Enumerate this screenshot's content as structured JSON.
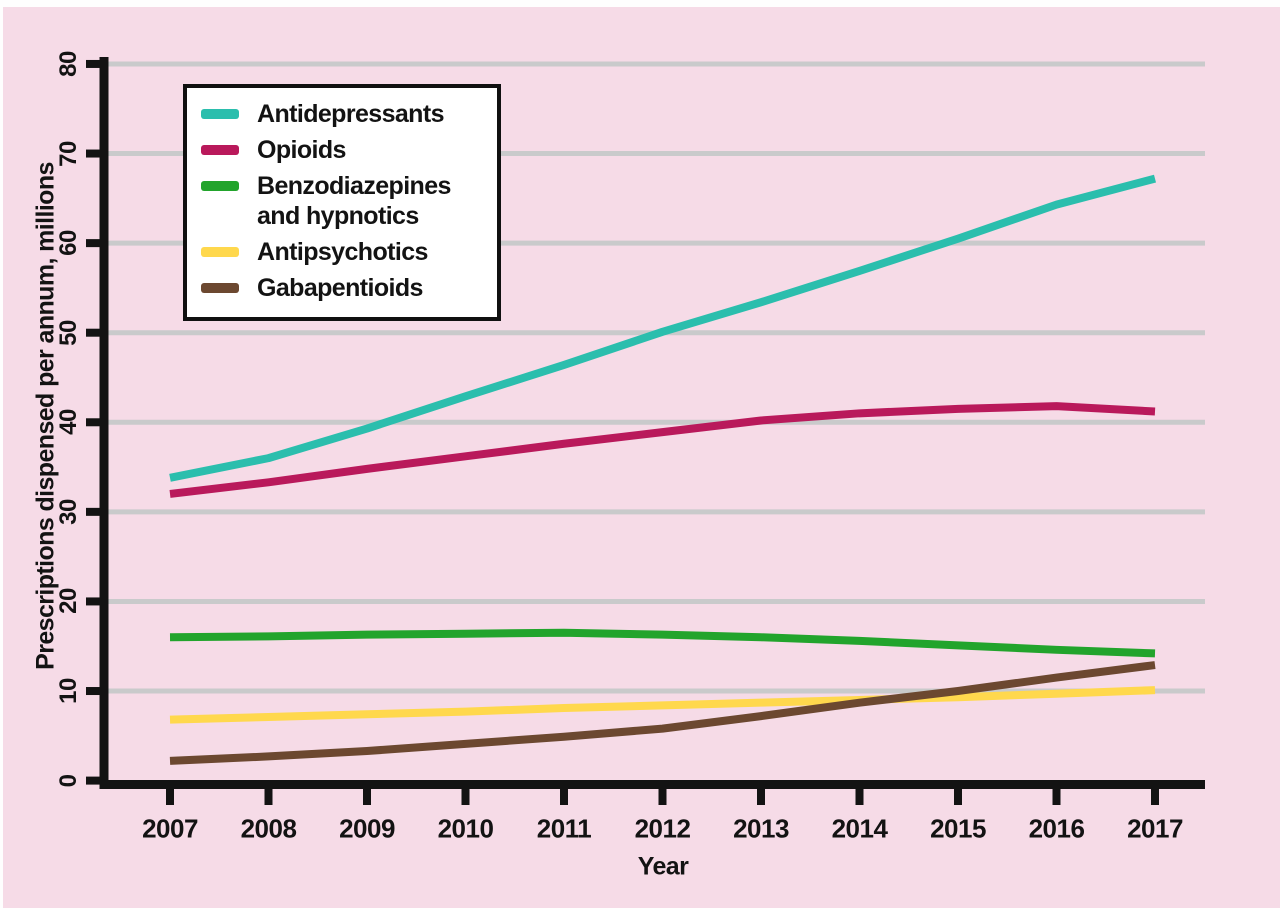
{
  "chart_data": {
    "type": "line",
    "title": "",
    "xlabel": "Year",
    "ylabel": "Prescriptions dispensed per annum, millions",
    "x": [
      2007,
      2008,
      2009,
      2010,
      2011,
      2012,
      2013,
      2014,
      2015,
      2016,
      2017
    ],
    "x_tick_labels": [
      "2007",
      "2008",
      "2009",
      "2010",
      "2011",
      "2012",
      "2013",
      "2014",
      "2015",
      "2016",
      "2017"
    ],
    "y_tick_labels": [
      "0",
      "10",
      "20",
      "30",
      "40",
      "50",
      "60",
      "70",
      "80"
    ],
    "y_ticks": [
      0,
      10,
      20,
      30,
      40,
      50,
      60,
      70,
      80
    ],
    "ylim": [
      0,
      80
    ],
    "xlim": [
      2007,
      2017
    ],
    "grid": "horizontal",
    "legend_position": "top-left-inside",
    "colors": {
      "background": "#F6DBE7",
      "gridline": "#C9CACB",
      "axis": "#131313",
      "legend_border": "#101010",
      "legend_background": "#FFFFFF"
    },
    "series": [
      {
        "name": "Antidepressants",
        "color": "#2BBEAD",
        "values": [
          33.8,
          36.0,
          39.3,
          42.9,
          46.4,
          50.1,
          53.4,
          56.9,
          60.5,
          64.3,
          67.2
        ]
      },
      {
        "name": "Opioids",
        "color": "#B9195B",
        "values": [
          32.0,
          33.3,
          34.8,
          36.2,
          37.6,
          38.9,
          40.2,
          41.0,
          41.5,
          41.8,
          41.2
        ]
      },
      {
        "name": "Benzodiazepines and hypnotics",
        "color": "#22A42C",
        "values": [
          16.0,
          16.1,
          16.3,
          16.4,
          16.5,
          16.3,
          16.0,
          15.6,
          15.1,
          14.6,
          14.2
        ]
      },
      {
        "name": "Antipsychotics",
        "color": "#FFD84D",
        "values": [
          6.8,
          7.1,
          7.4,
          7.7,
          8.1,
          8.4,
          8.7,
          9.0,
          9.3,
          9.7,
          10.1
        ]
      },
      {
        "name": "Gabapentioids",
        "color": "#6C4830",
        "values": [
          2.2,
          2.7,
          3.3,
          4.1,
          4.9,
          5.8,
          7.2,
          8.7,
          10.0,
          11.5,
          12.9
        ]
      }
    ]
  }
}
